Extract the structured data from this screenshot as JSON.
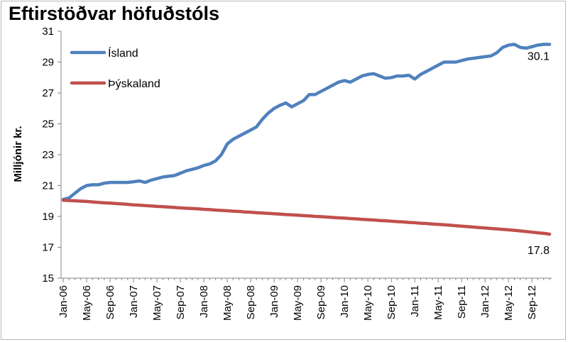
{
  "chart_data": {
    "type": "line",
    "title": "Eftirstöðvar höfuðstóls",
    "ylabel": "Milljónir kr.",
    "xlabel": "",
    "ylim": [
      15,
      31
    ],
    "yticks": [
      15,
      17,
      19,
      21,
      23,
      25,
      27,
      29,
      31
    ],
    "grid": false,
    "legend_position": "top-left",
    "x_tick_labels": [
      "Jan-06",
      "May-06",
      "Sep-06",
      "Jan-07",
      "May-07",
      "Sep-07",
      "Jan-08",
      "May-08",
      "Sep-08",
      "Jan-09",
      "May-09",
      "Sep-09",
      "Jan-10",
      "May-10",
      "Sep-10",
      "Jan-11",
      "May-11",
      "Sep-11",
      "Jan-12",
      "May-12",
      "Sep-12"
    ],
    "x": [
      "Jan-06",
      "Feb-06",
      "Mar-06",
      "Apr-06",
      "May-06",
      "Jun-06",
      "Jul-06",
      "Aug-06",
      "Sep-06",
      "Oct-06",
      "Nov-06",
      "Dec-06",
      "Jan-07",
      "Feb-07",
      "Mar-07",
      "Apr-07",
      "May-07",
      "Jun-07",
      "Jul-07",
      "Aug-07",
      "Sep-07",
      "Oct-07",
      "Nov-07",
      "Dec-07",
      "Jan-08",
      "Feb-08",
      "Mar-08",
      "Apr-08",
      "May-08",
      "Jun-08",
      "Jul-08",
      "Aug-08",
      "Sep-08",
      "Oct-08",
      "Nov-08",
      "Dec-08",
      "Jan-09",
      "Feb-09",
      "Mar-09",
      "Apr-09",
      "May-09",
      "Jun-09",
      "Jul-09",
      "Aug-09",
      "Sep-09",
      "Oct-09",
      "Nov-09",
      "Dec-09",
      "Jan-10",
      "Feb-10",
      "Mar-10",
      "Apr-10",
      "May-10",
      "Jun-10",
      "Jul-10",
      "Aug-10",
      "Sep-10",
      "Oct-10",
      "Nov-10",
      "Dec-10",
      "Jan-11",
      "Feb-11",
      "Mar-11",
      "Apr-11",
      "May-11",
      "Jun-11",
      "Jul-11",
      "Aug-11",
      "Sep-11",
      "Oct-11",
      "Nov-11",
      "Dec-11",
      "Jan-12",
      "Feb-12",
      "Mar-12",
      "Apr-12",
      "May-12",
      "Jun-12",
      "Jul-12",
      "Aug-12",
      "Sep-12",
      "Oct-12",
      "Nov-12",
      "Dec-12"
    ],
    "series": [
      {
        "name": "Ísland",
        "color": "#4f81bd",
        "end_label": "30.1",
        "values": [
          20.1,
          20.2,
          20.5,
          20.8,
          21.0,
          21.05,
          21.05,
          21.15,
          21.2,
          21.2,
          21.2,
          21.2,
          21.25,
          21.3,
          21.2,
          21.35,
          21.45,
          21.55,
          21.6,
          21.65,
          21.8,
          21.95,
          22.05,
          22.15,
          22.3,
          22.4,
          22.6,
          23.0,
          23.7,
          24.0,
          24.2,
          24.4,
          24.6,
          24.8,
          25.3,
          25.7,
          26.0,
          26.2,
          26.35,
          26.1,
          26.3,
          26.5,
          26.9,
          26.9,
          27.1,
          27.3,
          27.5,
          27.7,
          27.8,
          27.7,
          27.9,
          28.1,
          28.2,
          28.25,
          28.1,
          27.95,
          28.0,
          28.1,
          28.1,
          28.15,
          27.9,
          28.2,
          28.4,
          28.6,
          28.8,
          29.0,
          29.0,
          29.0,
          29.1,
          29.2,
          29.25,
          29.3,
          29.35,
          29.4,
          29.6,
          29.95,
          30.1,
          30.15,
          29.95,
          29.9,
          30.0,
          30.1,
          30.15,
          30.15
        ]
      },
      {
        "name": "Þýskaland",
        "color": "#c0504d",
        "end_label": "17.8",
        "values": [
          20.05,
          20.03,
          20.01,
          19.99,
          19.97,
          19.94,
          19.91,
          19.88,
          19.86,
          19.83,
          19.81,
          19.78,
          19.75,
          19.73,
          19.7,
          19.68,
          19.65,
          19.63,
          19.6,
          19.58,
          19.55,
          19.53,
          19.51,
          19.49,
          19.46,
          19.44,
          19.41,
          19.39,
          19.37,
          19.34,
          19.32,
          19.29,
          19.27,
          19.24,
          19.22,
          19.2,
          19.17,
          19.15,
          19.12,
          19.1,
          19.08,
          19.05,
          19.03,
          19.0,
          18.98,
          18.96,
          18.93,
          18.91,
          18.89,
          18.86,
          18.84,
          18.81,
          18.79,
          18.77,
          18.74,
          18.72,
          18.69,
          18.66,
          18.64,
          18.61,
          18.59,
          18.56,
          18.54,
          18.51,
          18.48,
          18.46,
          18.43,
          18.4,
          18.37,
          18.34,
          18.31,
          18.28,
          18.25,
          18.22,
          18.19,
          18.16,
          18.13,
          18.1,
          18.06,
          18.02,
          17.98,
          17.94,
          17.9,
          17.85
        ]
      }
    ]
  }
}
